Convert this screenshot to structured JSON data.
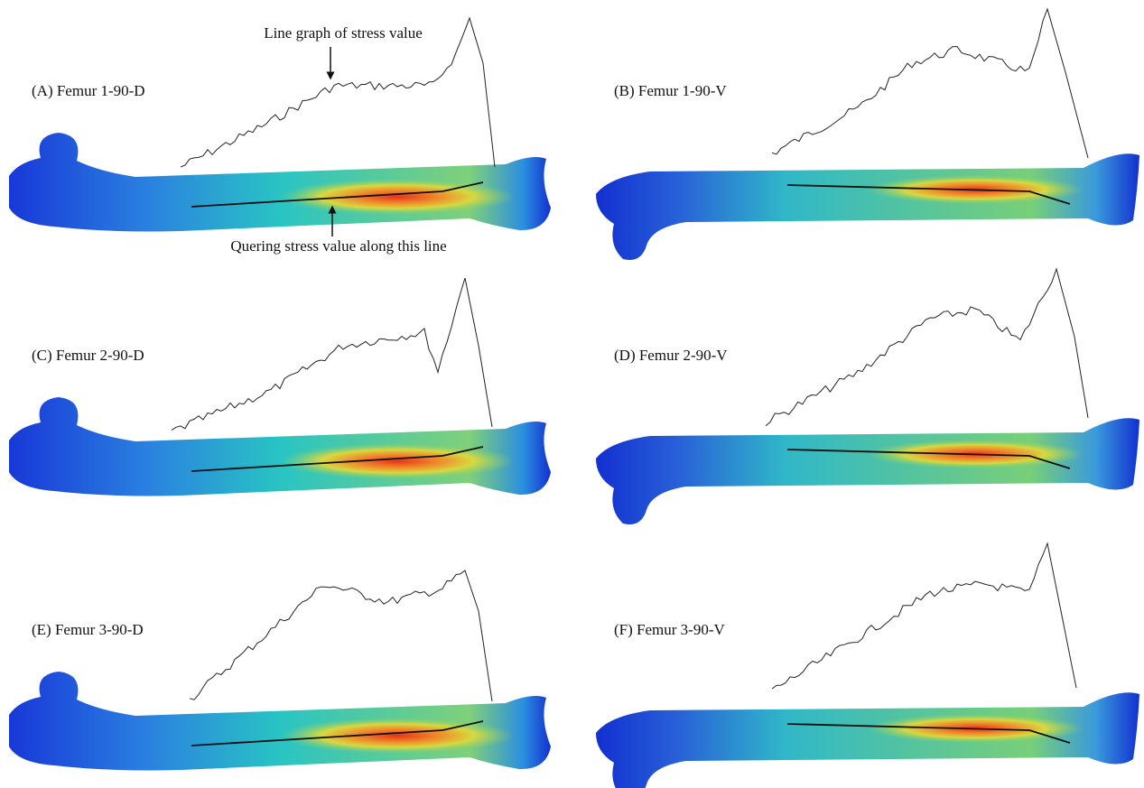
{
  "panels": [
    {
      "label": "(A) Femur 1-90-D"
    },
    {
      "label": "(B) Femur 1-90-V"
    },
    {
      "label": "(C) Femur 2-90-D"
    },
    {
      "label": "(D) Femur 2-90-V"
    },
    {
      "label": "(E) Femur 3-90-D"
    },
    {
      "label": "(F) Femur 3-90-V"
    }
  ],
  "annotations": {
    "graph": "Line graph of stress value",
    "query": "Quering stress value along this line"
  }
}
